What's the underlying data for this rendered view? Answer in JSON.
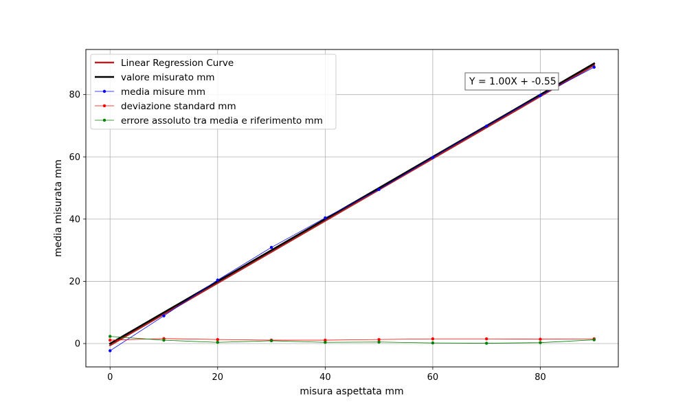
{
  "chart_data": {
    "type": "line",
    "title": "",
    "xlabel": "misura aspettata mm",
    "ylabel": "media misurata mm",
    "xlim": [
      -4.5,
      94.5
    ],
    "ylim": [
      -7.5,
      94.5
    ],
    "xticks": [
      0,
      20,
      40,
      60,
      80
    ],
    "yticks": [
      0,
      20,
      40,
      60,
      80
    ],
    "grid": true,
    "legend_position": "upper-left",
    "annotation": "Y = 1.00X + -0.55",
    "x": [
      0,
      10,
      20,
      30,
      40,
      50,
      60,
      70,
      80,
      90
    ],
    "series": [
      {
        "name": "Linear Regression Curve",
        "color": "#b22222",
        "kind": "line",
        "x": [
          0,
          90
        ],
        "values": [
          -0.55,
          89.45
        ]
      },
      {
        "name": "valore misurato mm",
        "color": "#000000",
        "kind": "line",
        "x": [
          0,
          90
        ],
        "values": [
          0,
          90
        ]
      },
      {
        "name": "media misure mm",
        "color": "#0000ff",
        "kind": "line-marker",
        "values": [
          -2.3,
          8.9,
          20.4,
          30.9,
          40.4,
          49.5,
          59.8,
          69.9,
          79.7,
          88.8
        ]
      },
      {
        "name": "deviazione standard mm",
        "color": "#ff0000",
        "kind": "line-marker",
        "values": [
          1.1,
          1.6,
          1.3,
          1.1,
          1.1,
          1.3,
          1.5,
          1.5,
          1.4,
          1.5
        ]
      },
      {
        "name": "errore assoluto tra media e riferimento  mm",
        "color": "#008000",
        "kind": "line-marker",
        "values": [
          2.3,
          1.1,
          0.4,
          0.9,
          0.4,
          0.5,
          0.2,
          0.1,
          0.3,
          1.2
        ]
      }
    ]
  }
}
